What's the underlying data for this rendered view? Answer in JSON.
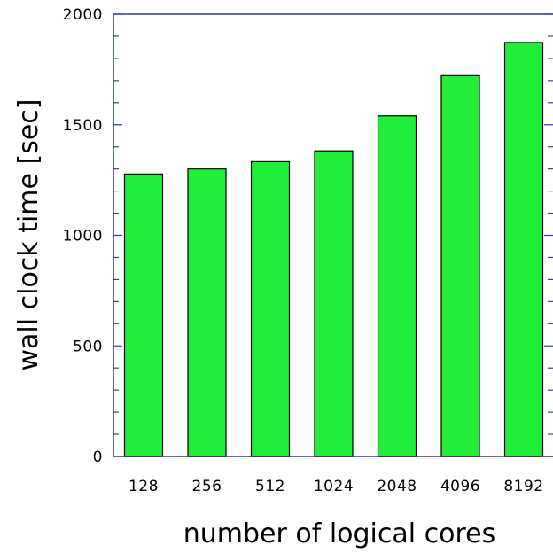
{
  "chart_data": {
    "type": "bar",
    "title": "",
    "xlabel": "number of logical cores",
    "ylabel": "wall clock time [sec]",
    "categories": [
      "128",
      "256",
      "512",
      "1024",
      "2048",
      "4096",
      "8192"
    ],
    "values": [
      1277,
      1300,
      1333,
      1382,
      1540,
      1722,
      1872
    ],
    "ylim": [
      0,
      2000
    ],
    "yticks": [
      0,
      500,
      1000,
      1500,
      2000
    ],
    "y_minor_step": 100,
    "grid": false,
    "legend": "none",
    "colors": {
      "bar_fill": "#22ee3a",
      "bar_stroke": "#000000",
      "axis": "#2b3bb8"
    }
  }
}
